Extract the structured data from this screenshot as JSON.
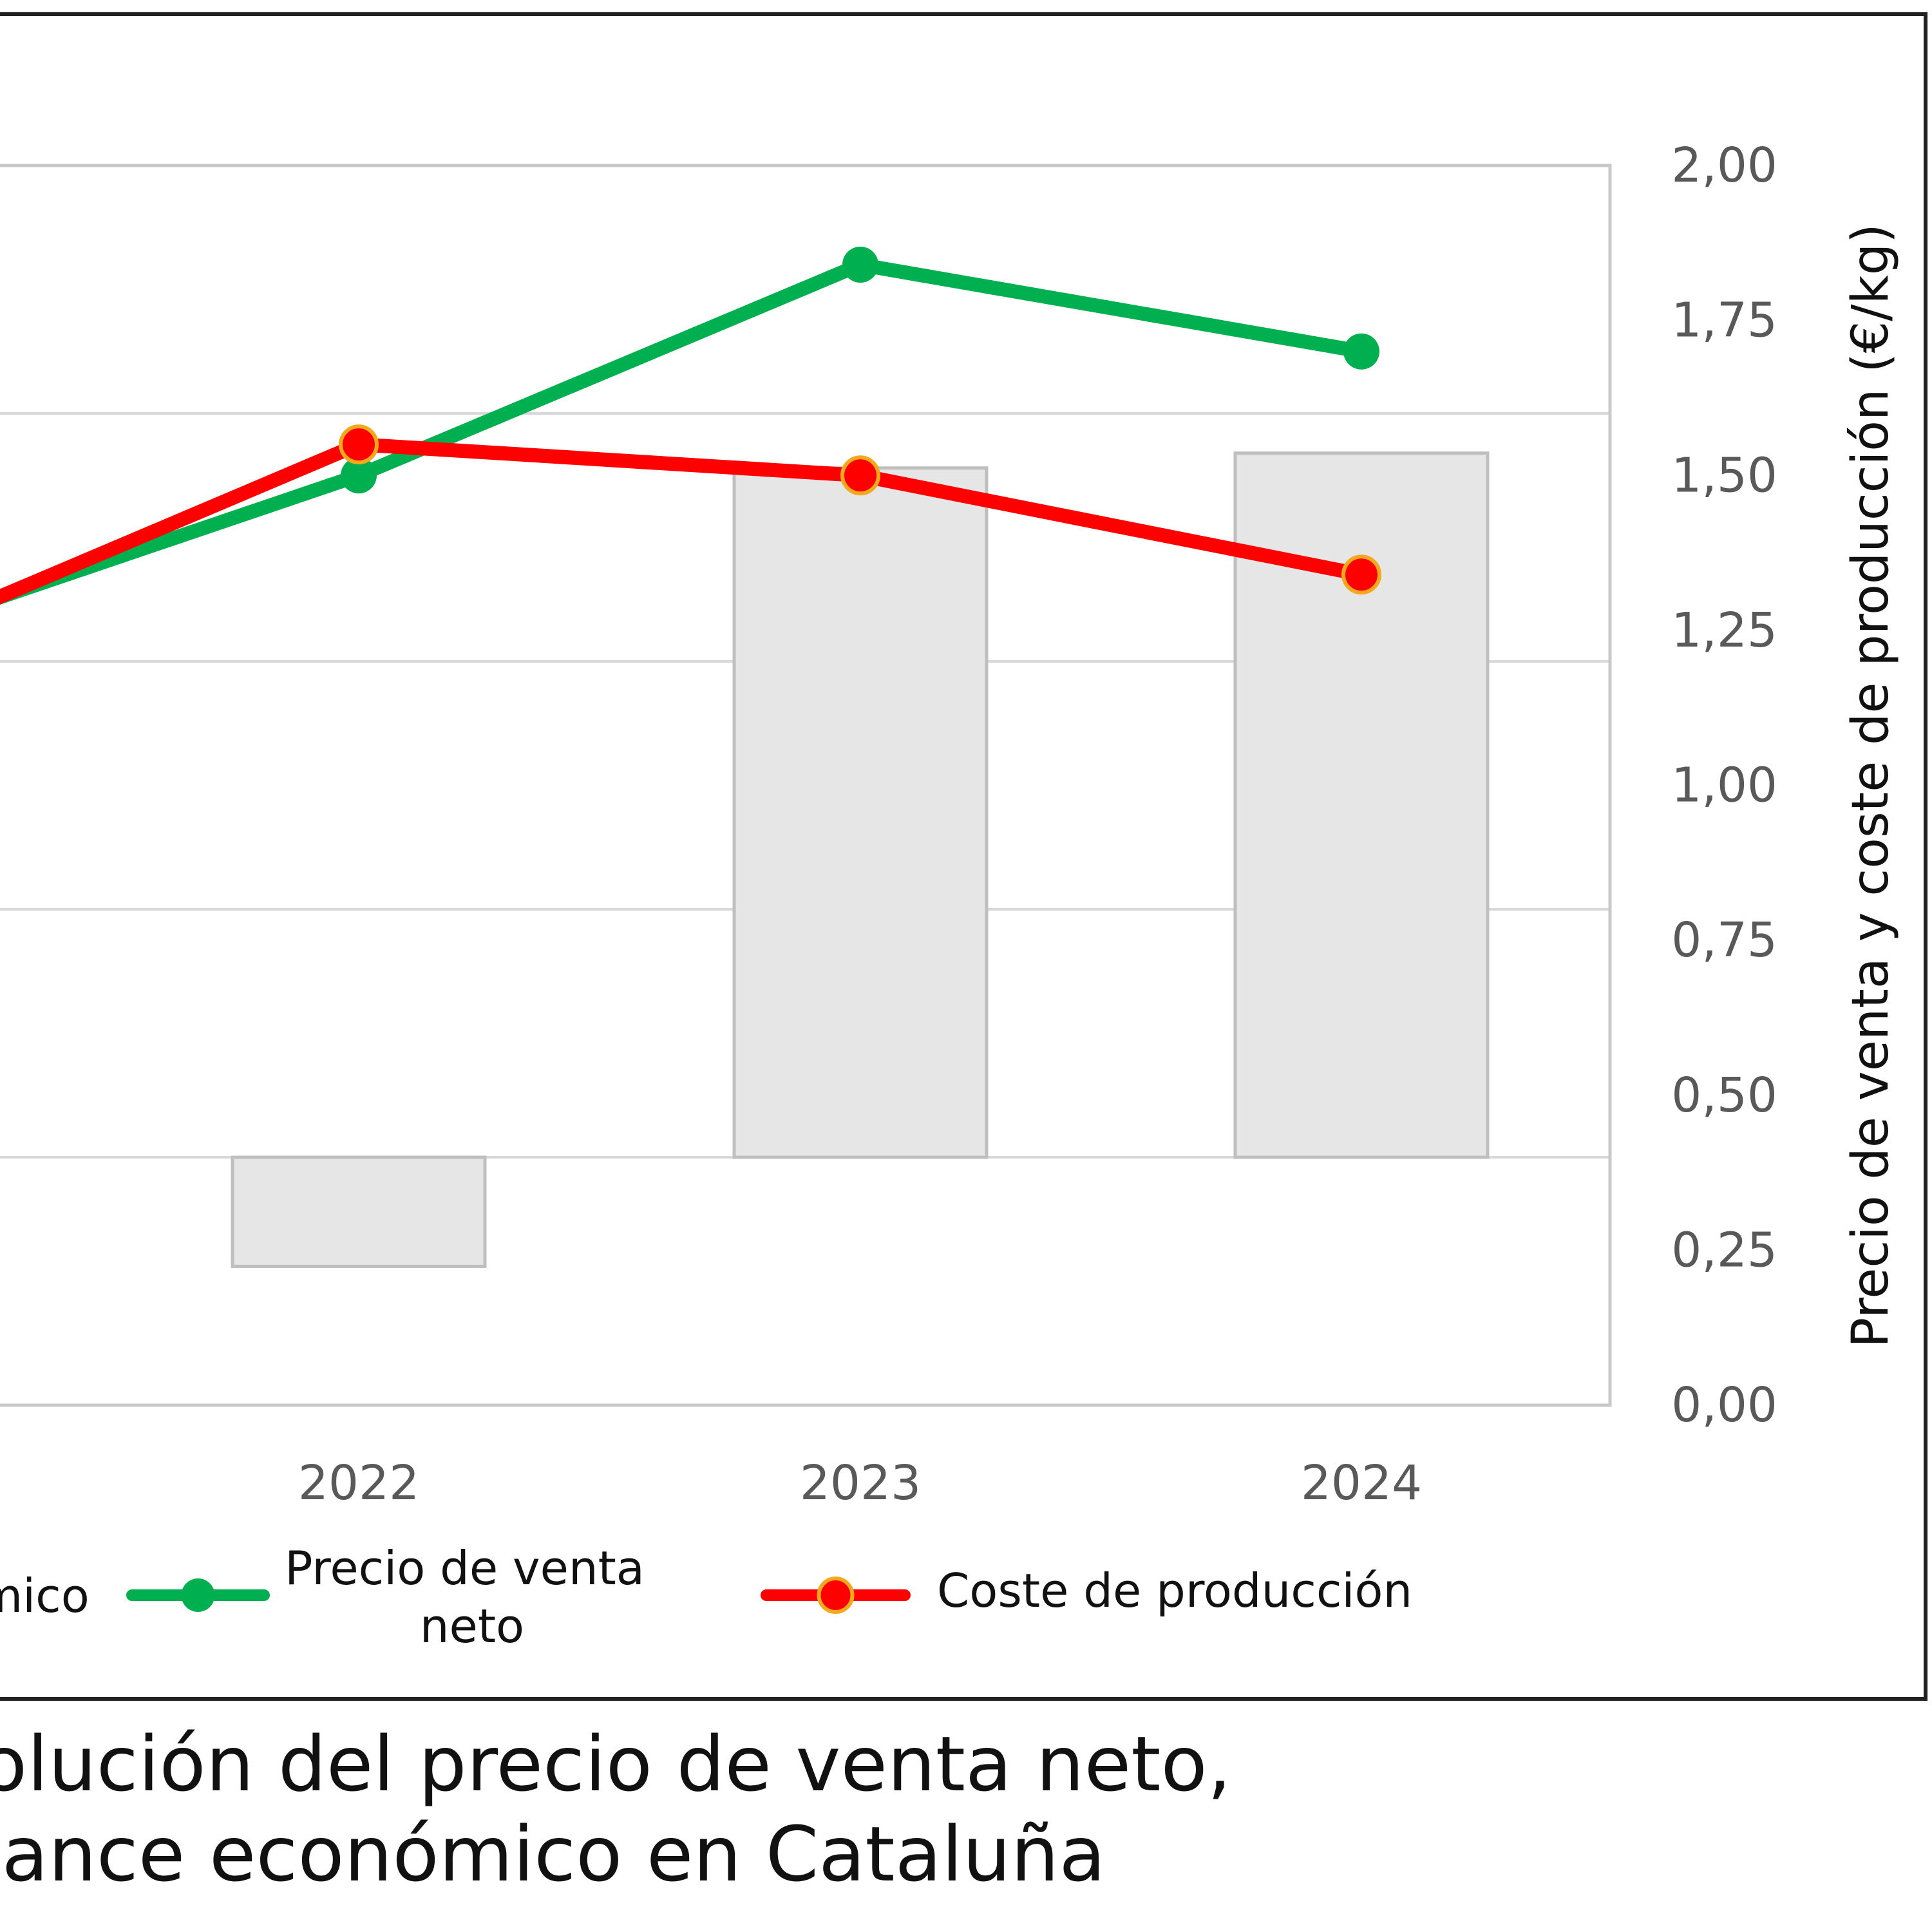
{
  "chart_data": {
    "type": "bar+line",
    "categories": [
      "2022",
      "2023",
      "2024"
    ],
    "bar_series": {
      "name": "…mico",
      "values": [
        -0.22,
        1.39,
        1.42
      ],
      "color": "#e6e6e6",
      "stroke": "#bfbfbf"
    },
    "line_series": [
      {
        "name": "Precio de venta neto",
        "name_lines": [
          "Precio de venta",
          "neto"
        ],
        "values": [
          1.5,
          1.84,
          1.7
        ],
        "color": "#00b050"
      },
      {
        "name": "Coste de producción",
        "values": [
          1.55,
          1.5,
          1.34
        ],
        "color": "#ff0000",
        "marker_edge": "#f4a81d"
      }
    ],
    "right_axis": {
      "label": "Precio de venta y coste de producción (€/kg)",
      "ylim": [
        0,
        2
      ],
      "ticks": [
        "0,00",
        "0,25",
        "0,50",
        "0,75",
        "1,00",
        "1,25",
        "1,50",
        "1,75",
        "2,00"
      ]
    },
    "left_axis_ylim": [
      -0.5,
      2.0
    ],
    "grid": true,
    "legend_position": "bottom",
    "legend_partial_label": "mico"
  },
  "caption": {
    "line1": "olución del precio de venta neto,",
    "line2": "lance económico en Cataluña"
  }
}
